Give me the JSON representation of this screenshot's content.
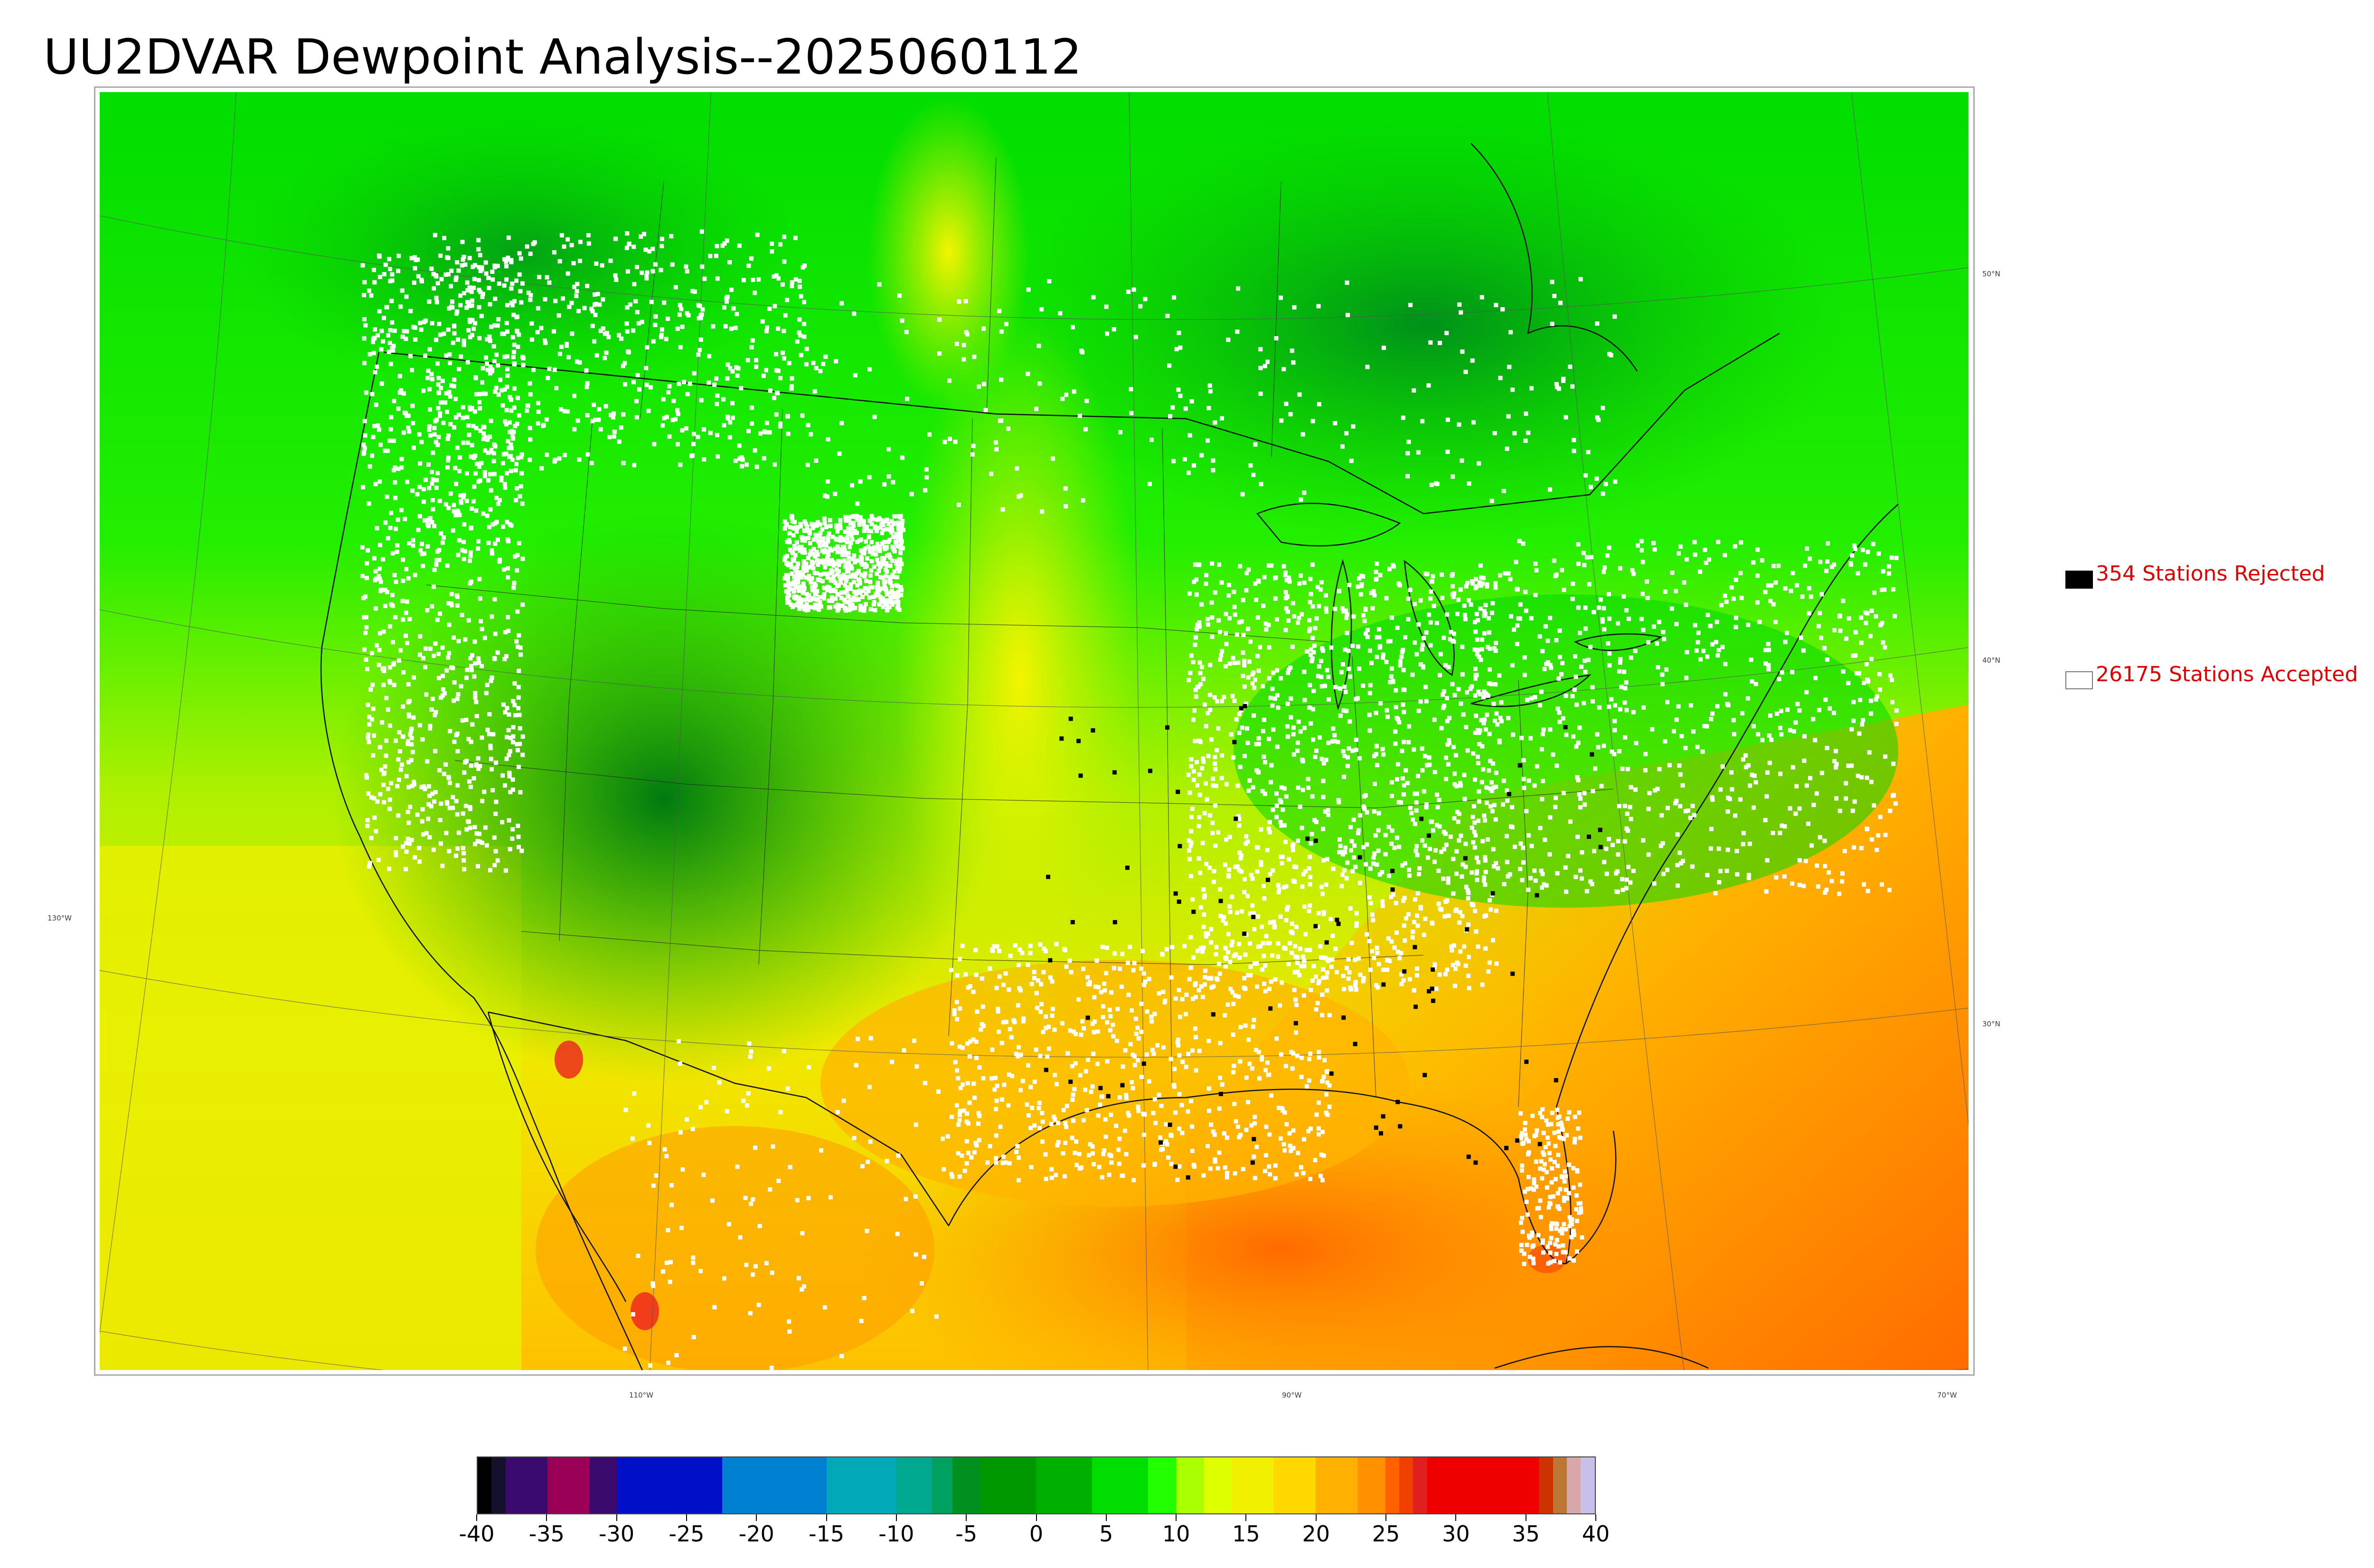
{
  "title": "UU2DVAR Dewpoint Analysis--2025060112",
  "legend": {
    "rejected": {
      "text": "354 Stations Rejected",
      "count": 354,
      "marker_color": "#000000"
    },
    "accepted": {
      "text": "26175 Stations Accepted",
      "count": 26175,
      "marker_color": "#ffffff"
    },
    "text_color": "#e00000"
  },
  "map": {
    "latitude_labels": [
      "50°N",
      "40°N",
      "30°N"
    ],
    "longitude_labels": [
      "130°W",
      "110°W",
      "90°W",
      "70°W"
    ]
  },
  "colorbar": {
    "min": -40,
    "max": 40,
    "tick_labels": [
      "-40",
      "-35",
      "-30",
      "-25",
      "-20",
      "-15",
      "-10",
      "-5",
      "0",
      "5",
      "10",
      "15",
      "20",
      "25",
      "30",
      "35",
      "40"
    ],
    "segments": [
      {
        "from": -40,
        "to": -39,
        "color": "#000000"
      },
      {
        "from": -39,
        "to": -38,
        "color": "#15102e"
      },
      {
        "from": -38,
        "to": -35,
        "color": "#3a0a6e"
      },
      {
        "from": -35,
        "to": -32,
        "color": "#9a0055"
      },
      {
        "from": -32,
        "to": -30,
        "color": "#3a0a6e"
      },
      {
        "from": -30,
        "to": -22.5,
        "color": "#0010c8"
      },
      {
        "from": -22.5,
        "to": -15,
        "color": "#0080d0"
      },
      {
        "from": -15,
        "to": -10,
        "color": "#00a8b8"
      },
      {
        "from": -10,
        "to": -7.5,
        "color": "#00a890"
      },
      {
        "from": -7.5,
        "to": -6,
        "color": "#00a060"
      },
      {
        "from": -6,
        "to": -4,
        "color": "#009020"
      },
      {
        "from": -4,
        "to": 0,
        "color": "#009800"
      },
      {
        "from": 0,
        "to": 4,
        "color": "#00b000"
      },
      {
        "from": 4,
        "to": 8,
        "color": "#00dd00"
      },
      {
        "from": 8,
        "to": 10,
        "color": "#22ff00"
      },
      {
        "from": 10,
        "to": 12,
        "color": "#aaff00"
      },
      {
        "from": 12,
        "to": 14,
        "color": "#ddff00"
      },
      {
        "from": 14,
        "to": 17,
        "color": "#f0f000"
      },
      {
        "from": 17,
        "to": 20,
        "color": "#ffd800"
      },
      {
        "from": 20,
        "to": 23,
        "color": "#ffb000"
      },
      {
        "from": 23,
        "to": 25,
        "color": "#ff9000"
      },
      {
        "from": 25,
        "to": 26,
        "color": "#ff6000"
      },
      {
        "from": 26,
        "to": 27,
        "color": "#f04000"
      },
      {
        "from": 27,
        "to": 28,
        "color": "#e02020"
      },
      {
        "from": 28,
        "to": 36,
        "color": "#ee0000"
      },
      {
        "from": 36,
        "to": 37,
        "color": "#cc3300"
      },
      {
        "from": 37,
        "to": 38,
        "color": "#bb7733"
      },
      {
        "from": 38,
        "to": 39,
        "color": "#d8a8a8"
      },
      {
        "from": 39,
        "to": 40,
        "color": "#c8c0e8"
      }
    ]
  },
  "colors": {
    "cold_green": "#00aa00",
    "mid_green": "#00e000",
    "yellow": "#e8f000",
    "orange": "#ffb000",
    "deep_orange": "#ff7a00"
  }
}
